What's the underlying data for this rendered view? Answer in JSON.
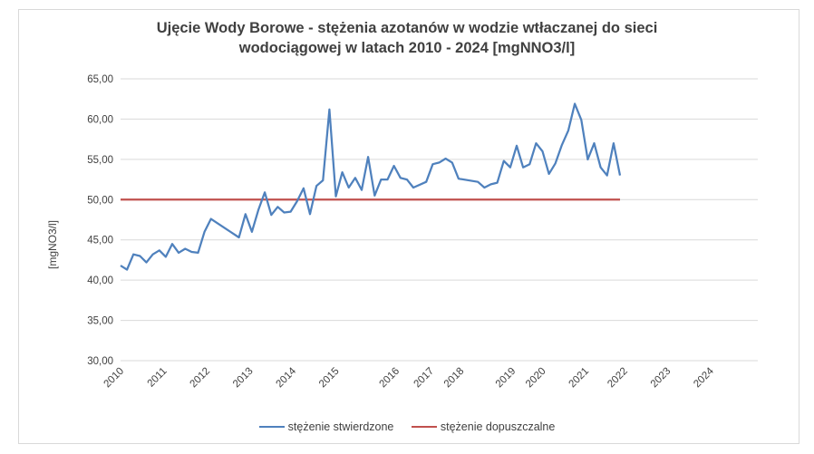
{
  "chart_data": {
    "type": "line",
    "title_line1": "Ujęcie Wody Borowe - stężenia azotanów w wodzie wtłaczanej do sieci",
    "title_line2": "wodociągowej w latach 2010 - 2024 [mgNNO3/l]",
    "ylabel": "[mgNO3/l]",
    "ylim": [
      30,
      65
    ],
    "yticks": [
      "30,00",
      "35,00",
      "40,00",
      "45,00",
      "50,00",
      "55,00",
      "60,00",
      "65,00"
    ],
    "xlim": [
      2010.0,
      2024.8
    ],
    "xticks": [
      {
        "label": "2010",
        "x": 2010.0
      },
      {
        "label": "2011",
        "x": 2011.0
      },
      {
        "label": "2012",
        "x": 2012.0
      },
      {
        "label": "2013",
        "x": 2013.0
      },
      {
        "label": "2014",
        "x": 2014.0
      },
      {
        "label": "2015",
        "x": 2015.0
      },
      {
        "label": "2016",
        "x": 2016.4
      },
      {
        "label": "2017",
        "x": 2017.2
      },
      {
        "label": "2018",
        "x": 2017.9
      },
      {
        "label": "2019",
        "x": 2019.1
      },
      {
        "label": "2020",
        "x": 2019.8
      },
      {
        "label": "2021",
        "x": 2020.8
      },
      {
        "label": "2022",
        "x": 2021.7
      },
      {
        "label": "2023",
        "x": 2022.7
      },
      {
        "label": "2024",
        "x": 2023.7
      }
    ],
    "series": [
      {
        "name": "stężenie stwierdzone",
        "color": "#4f81bd",
        "points": [
          [
            2010.0,
            41.8
          ],
          [
            2010.15,
            41.3
          ],
          [
            2010.3,
            43.2
          ],
          [
            2010.45,
            43.0
          ],
          [
            2010.6,
            42.2
          ],
          [
            2010.75,
            43.2
          ],
          [
            2010.9,
            43.7
          ],
          [
            2011.05,
            42.9
          ],
          [
            2011.2,
            44.5
          ],
          [
            2011.35,
            43.4
          ],
          [
            2011.5,
            43.9
          ],
          [
            2011.65,
            43.5
          ],
          [
            2011.8,
            43.4
          ],
          [
            2011.95,
            46.0
          ],
          [
            2012.1,
            47.6
          ],
          [
            2012.75,
            45.3
          ],
          [
            2012.9,
            48.2
          ],
          [
            2013.05,
            46.0
          ],
          [
            2013.2,
            48.7
          ],
          [
            2013.35,
            50.9
          ],
          [
            2013.5,
            48.1
          ],
          [
            2013.65,
            49.1
          ],
          [
            2013.8,
            48.4
          ],
          [
            2013.95,
            48.5
          ],
          [
            2014.1,
            49.8
          ],
          [
            2014.25,
            51.4
          ],
          [
            2014.4,
            48.2
          ],
          [
            2014.55,
            51.7
          ],
          [
            2014.7,
            52.4
          ],
          [
            2014.85,
            61.2
          ],
          [
            2015.0,
            50.4
          ],
          [
            2015.15,
            53.4
          ],
          [
            2015.3,
            51.5
          ],
          [
            2015.45,
            52.7
          ],
          [
            2015.6,
            51.2
          ],
          [
            2015.75,
            55.3
          ],
          [
            2015.9,
            50.5
          ],
          [
            2016.05,
            52.5
          ],
          [
            2016.2,
            52.5
          ],
          [
            2016.35,
            54.2
          ],
          [
            2016.5,
            52.7
          ],
          [
            2016.65,
            52.5
          ],
          [
            2016.8,
            51.5
          ],
          [
            2017.1,
            52.2
          ],
          [
            2017.25,
            54.4
          ],
          [
            2017.4,
            54.6
          ],
          [
            2017.55,
            55.1
          ],
          [
            2017.7,
            54.6
          ],
          [
            2017.85,
            52.6
          ],
          [
            2018.3,
            52.2
          ],
          [
            2018.45,
            51.5
          ],
          [
            2018.6,
            51.9
          ],
          [
            2018.75,
            52.1
          ],
          [
            2018.9,
            54.8
          ],
          [
            2019.05,
            54.0
          ],
          [
            2019.2,
            56.7
          ],
          [
            2019.35,
            54.0
          ],
          [
            2019.5,
            54.4
          ],
          [
            2019.65,
            57.0
          ],
          [
            2019.8,
            56.0
          ],
          [
            2019.95,
            53.2
          ],
          [
            2020.1,
            54.5
          ],
          [
            2020.25,
            56.8
          ],
          [
            2020.4,
            58.6
          ],
          [
            2020.55,
            61.9
          ],
          [
            2020.7,
            59.9
          ],
          [
            2020.85,
            55.0
          ],
          [
            2021.0,
            57.0
          ],
          [
            2021.15,
            54.0
          ],
          [
            2021.3,
            53.0
          ],
          [
            2021.45,
            57.0
          ],
          [
            2021.6,
            53.0
          ]
        ]
      },
      {
        "name": "stężenie dopuszczalne",
        "color": "#c0504d",
        "points": [
          [
            2010.0,
            50.0
          ],
          [
            2021.6,
            50.0
          ]
        ]
      }
    ],
    "legend_position": "bottom",
    "grid": "horizontal"
  }
}
